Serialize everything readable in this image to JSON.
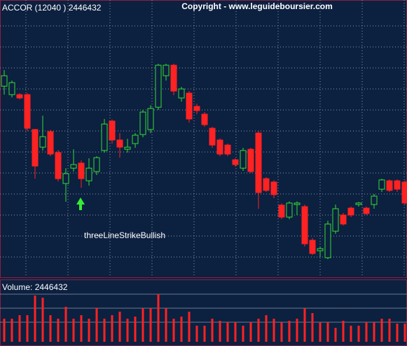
{
  "chart_data": {
    "type": "candlestick",
    "title": "ACCOR (12040 ) 2446432",
    "copyright": "Copyright - www.leguideboursier.com",
    "annotation": "threeLineStrikeBullish",
    "volume_label": "Volume: 2446432",
    "up_color": "#33dd33",
    "down_color": "#ff2222",
    "grid": true,
    "ylim": [
      0,
      130
    ],
    "yticks": [
      10,
      20,
      30,
      40,
      50,
      60,
      70,
      80,
      90,
      100,
      110,
      120
    ],
    "open": [
      91.3,
      87.3,
      87.3,
      87.3,
      70.7,
      62.3,
      69.7,
      59.7,
      45,
      52.3,
      54.7,
      46.3,
      50.7,
      60.7,
      74.7,
      65.7,
      61.3,
      64,
      68.3,
      70.7,
      81.3,
      96.3,
      101.3,
      85.7,
      88,
      81.7,
      78,
      71.3,
      65.7,
      63.3,
      56.3,
      52.3,
      61.3,
      69,
      47.3,
      45.7,
      34.7,
      29,
      35,
      34,
      18,
      13,
      9.7,
      22.3,
      30,
      33.3,
      35,
      33.3,
      35,
      42.3,
      46.3,
      46.3,
      45.7
    ],
    "high": [
      99,
      94,
      88,
      88,
      71,
      77.3,
      70.5,
      61,
      52.3,
      61.3,
      56,
      57,
      58,
      75.7,
      75.5,
      69,
      66.3,
      69,
      80,
      82.3,
      102,
      102,
      102,
      91,
      89,
      83,
      79,
      72,
      66.5,
      64,
      57,
      62,
      62,
      70,
      48,
      46.5,
      35.5,
      36.5,
      36.5,
      35,
      19,
      15,
      27.3,
      35,
      31,
      34,
      36.3,
      34,
      40,
      47.3,
      47,
      47,
      46.5
    ],
    "low": [
      87.3,
      86,
      85,
      70,
      47.3,
      60.7,
      58,
      46,
      36.3,
      50.7,
      43,
      44,
      49,
      59.7,
      64,
      57.3,
      59.7,
      62,
      67,
      69,
      80,
      94,
      87,
      84,
      74,
      78,
      72,
      62,
      58,
      58,
      53,
      51,
      50,
      33,
      41,
      38,
      28,
      28,
      30,
      15,
      11,
      10,
      9,
      21,
      25,
      29,
      34,
      30,
      33,
      41,
      41,
      41,
      35
    ],
    "close": [
      96.3,
      93,
      85.7,
      71.3,
      53.3,
      67.3,
      59,
      47.3,
      49.7,
      54,
      47.3,
      52.3,
      57.3,
      73.3,
      65.7,
      62.3,
      62.3,
      68,
      79,
      80.7,
      101.3,
      101.3,
      89,
      90,
      75.7,
      79.7,
      73,
      63.3,
      59,
      59,
      54,
      60.7,
      50.7,
      40.7,
      41.7,
      39.7,
      29,
      35.7,
      35.7,
      16.3,
      11.7,
      14,
      25.7,
      33,
      25.7,
      30,
      35.7,
      30.7,
      39,
      46.7,
      41.7,
      42.3,
      35.7
    ],
    "volume": [
      33,
      33,
      38,
      38,
      66,
      63,
      38,
      33,
      50,
      33,
      38,
      33,
      48,
      33,
      38,
      43,
      33,
      36,
      48,
      48,
      68,
      48,
      33,
      36,
      43,
      23,
      23,
      33,
      30,
      28,
      28,
      23,
      28,
      33,
      38,
      33,
      28,
      30,
      33,
      48,
      41,
      28,
      28,
      20,
      30,
      23,
      23,
      28,
      28,
      33,
      33,
      26,
      26
    ],
    "volume_lim": [
      0,
      88
    ],
    "volume_ticks": [
      28,
      48,
      68
    ]
  }
}
